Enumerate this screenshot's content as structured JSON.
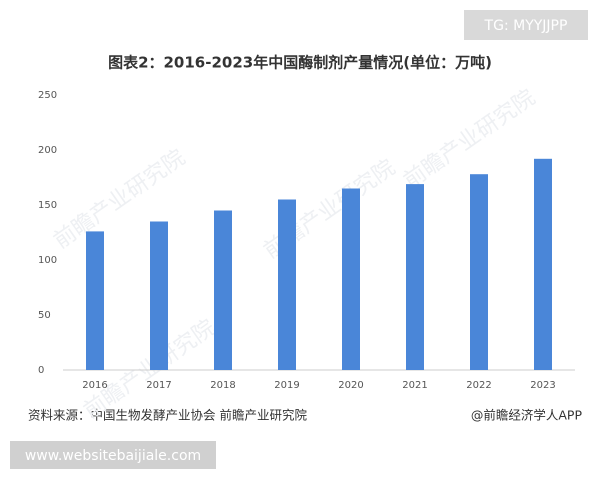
{
  "chart_data": {
    "type": "bar",
    "title": "图表2：2016-2023年中国酶制剂产量情况(单位：万吨)",
    "categories": [
      "2016",
      "2017",
      "2018",
      "2019",
      "2020",
      "2021",
      "2022",
      "2023"
    ],
    "values": [
      126,
      135,
      145,
      155,
      165,
      169,
      178,
      192
    ],
    "color": "#4a86d8",
    "ylim": [
      0,
      250
    ],
    "yticks": [
      0,
      50,
      100,
      150,
      200,
      250
    ],
    "grid": false,
    "source": "资料来源：中国生物发酵产业协会 前瞻产业研究院",
    "credit": "@前瞻经济学人APP",
    "watermark": "前瞻产业研究院"
  },
  "overlay": {
    "tag": "TG: MYYJJPP",
    "website": "www.websitebaijiale.com"
  }
}
